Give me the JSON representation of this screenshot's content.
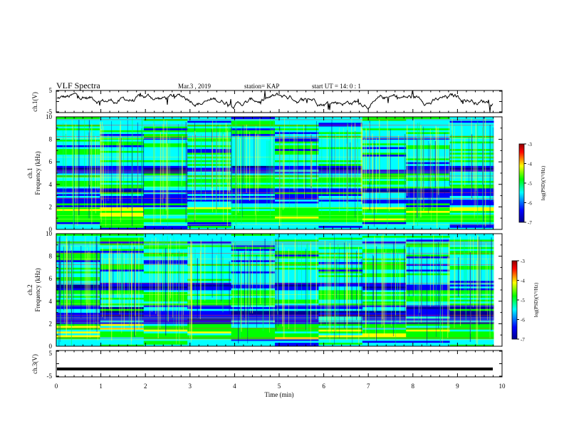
{
  "header": {
    "title": "VLF Spectra",
    "date": "Mar.3 , 2019",
    "station": "station= KAP",
    "start_ut": "start UT = 14: 0 : 1"
  },
  "chart_data": [
    {
      "type": "line",
      "panel": "ch1-waveform",
      "ylabel": "ch.1(V)",
      "ylim": [
        -5,
        5
      ],
      "yticks": [
        "5",
        "-5"
      ],
      "xlim": [
        0,
        10
      ]
    },
    {
      "type": "heatmap",
      "panel": "ch1-spectrogram",
      "ylabel_line1": "ch.1",
      "ylabel_line2": "Frequency (kHz)",
      "ylim": [
        0,
        10
      ],
      "yticks": [
        "0",
        "2",
        "4",
        "6",
        "8",
        "10"
      ],
      "xlim": [
        0,
        9.8
      ],
      "colorbar": {
        "label": "log(PSD)(V²/Hz)",
        "range": [
          -7,
          -3
        ],
        "ticks": [
          "-3",
          "-4",
          "-5",
          "-6",
          "-7"
        ]
      }
    },
    {
      "type": "heatmap",
      "panel": "ch2-spectrogram",
      "ylabel_line1": "ch.2",
      "ylabel_line2": "Frequency (kHz)",
      "ylim": [
        0,
        10
      ],
      "yticks": [
        "0",
        "2",
        "4",
        "6",
        "8",
        "10"
      ],
      "xlim": [
        0,
        9.8
      ],
      "colorbar": {
        "label": "log(PSD)(V²/Hz)",
        "range": [
          -7,
          -3
        ],
        "ticks": [
          "-3",
          "-4",
          "-5",
          "-6",
          "-7"
        ]
      }
    },
    {
      "type": "line",
      "panel": "ch3-waveform",
      "ylabel": "ch.3(V)",
      "ylim": [
        -5,
        5
      ],
      "yticks": [
        "5",
        "-5"
      ],
      "xlim": [
        0,
        10
      ],
      "constant_value": -2
    }
  ],
  "xaxis": {
    "label": "Time (min)",
    "ticks": [
      "0",
      "1",
      "2",
      "3",
      "4",
      "5",
      "6",
      "7",
      "8",
      "9",
      "10"
    ]
  },
  "colors": {
    "trace": "#000000",
    "colormap": [
      "#00008f",
      "#0000ff",
      "#00ffff",
      "#00ff00",
      "#ffff00",
      "#ff0000",
      "#8f0000"
    ]
  }
}
